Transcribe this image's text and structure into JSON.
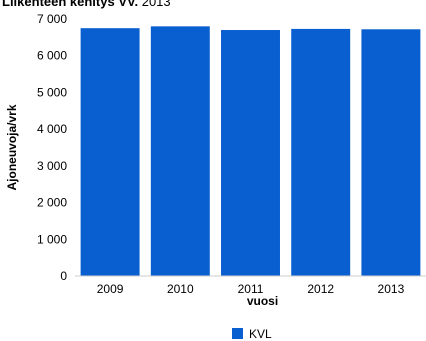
{
  "chart_data": {
    "type": "bar",
    "title": "Liikenteen kehitys VV.",
    "subtitle": "2013",
    "categories": [
      "2009",
      "2010",
      "2011",
      "2012",
      "2013"
    ],
    "series": [
      {
        "name": "KVL",
        "color": "#0a5fd0",
        "values": [
          6750,
          6800,
          6700,
          6730,
          6720
        ]
      }
    ],
    "xlabel": "vuosi",
    "ylabel": "Ajoneuvoja/vrk",
    "ylim": [
      0,
      7000
    ],
    "yticks": [
      "0",
      "1 000",
      "2 000",
      "3 000",
      "4 000",
      "5 000",
      "6 000",
      "7 000"
    ],
    "grid": false,
    "legend": "bottom-center"
  }
}
